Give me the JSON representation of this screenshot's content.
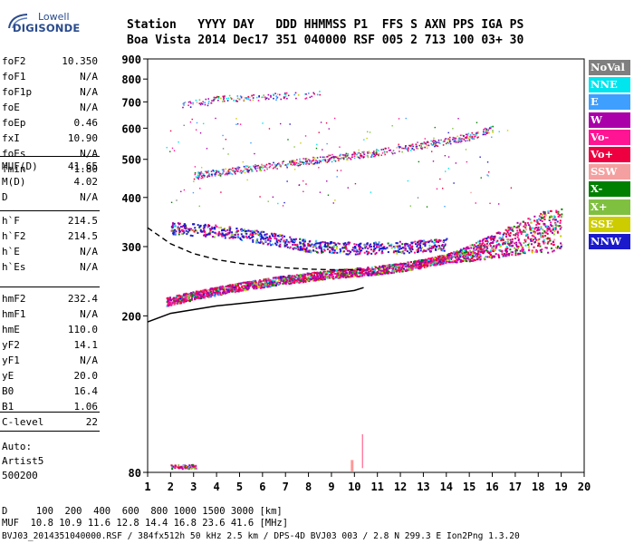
{
  "logo": {
    "brand_line1": "Lowell",
    "brand_line2": "DIGISONDE"
  },
  "header": {
    "row1": "Station   YYYY DAY   DDD HHMMSS P1  FFS S AXN PPS IGA PS",
    "row2": "Boa Vista 2014 Dec17 351 040000 RSF 005 2 713 100 03+ 30"
  },
  "params": {
    "group1": [
      {
        "label": "foF2",
        "value": "10.350"
      },
      {
        "label": "foF1",
        "value": "N/A"
      },
      {
        "label": "foF1p",
        "value": "N/A"
      },
      {
        "label": "foE",
        "value": "N/A"
      },
      {
        "label": "foEp",
        "value": "0.46"
      },
      {
        "label": "fxI",
        "value": "10.90"
      },
      {
        "label": "foEs",
        "value": "N/A"
      },
      {
        "label": "fmin",
        "value": "1.80"
      }
    ],
    "group2": [
      {
        "label": "MUF(D)",
        "value": "41.65"
      },
      {
        "label": "M(D)",
        "value": "4.02"
      },
      {
        "label": "D",
        "value": "N/A"
      }
    ],
    "group3": [
      {
        "label": "h`F",
        "value": "214.5"
      },
      {
        "label": "h`F2",
        "value": "214.5"
      },
      {
        "label": "h`E",
        "value": "N/A"
      },
      {
        "label": "h`Es",
        "value": "N/A"
      }
    ],
    "group4": [
      {
        "label": "hmF2",
        "value": "232.4"
      },
      {
        "label": "hmF1",
        "value": "N/A"
      },
      {
        "label": "hmE",
        "value": "110.0"
      },
      {
        "label": "yF2",
        "value": "14.1"
      },
      {
        "label": "yF1",
        "value": "N/A"
      },
      {
        "label": "yE",
        "value": "20.0"
      },
      {
        "label": "B0",
        "value": "16.4"
      },
      {
        "label": "B1",
        "value": "1.06"
      }
    ],
    "group5": [
      {
        "label": "C-level",
        "value": "22"
      }
    ],
    "autoscale": [
      "Auto:",
      "Artist5",
      "500200"
    ]
  },
  "legend": [
    {
      "label": "NoVal",
      "color": "#7f7f7f"
    },
    {
      "label": "NNE",
      "color": "#00e5ee"
    },
    {
      "label": "E",
      "color": "#3f9fff"
    },
    {
      "label": "W",
      "color": "#aa00aa"
    },
    {
      "label": "Vo-",
      "color": "#ff1493"
    },
    {
      "label": "Vo+",
      "color": "#ee0040"
    },
    {
      "label": "SSW",
      "color": "#f5a0a0"
    },
    {
      "label": "X-",
      "color": "#008000"
    },
    {
      "label": "X+",
      "color": "#80c040"
    },
    {
      "label": "SSE",
      "color": "#cccc00"
    },
    {
      "label": "NNW",
      "color": "#1a1acc"
    }
  ],
  "footer": {
    "line1": "D     100  200  400  600  800 1000 1500 3000 [km]",
    "line2": "MUF  10.8 10.9 11.6 12.8 14.4 16.8 23.6 41.6 [MHz]",
    "line3": "BVJ03_2014351040000.RSF / 384fx512h 50 kHz 2.5 km / DPS-4D BVJ03 003 / 2.8 N 299.3 E Ion2Png 1.3.20"
  },
  "chart_data": {
    "type": "scatter",
    "title": "",
    "xlabel": "",
    "ylabel": "",
    "xlim": [
      1,
      20
    ],
    "ylim": [
      80,
      900
    ],
    "x_ticks": [
      "1",
      "2",
      "3",
      "4",
      "5",
      "6",
      "7",
      "8",
      "9",
      "10",
      "11",
      "12",
      "13",
      "14",
      "15",
      "16",
      "17",
      "18",
      "19",
      "20"
    ],
    "y_ticks": [
      "80",
      "200",
      "300",
      "400",
      "500",
      "600",
      "700",
      "800",
      "900"
    ],
    "y_scale": "log",
    "grid": false,
    "legend_position": "right",
    "traces": [
      {
        "name": "F2 trace (first hop)",
        "values": [
          [
            1.8,
            218
          ],
          [
            3,
            226
          ],
          [
            4,
            232
          ],
          [
            5,
            238
          ],
          [
            6,
            243
          ],
          [
            7,
            248
          ],
          [
            8,
            252
          ],
          [
            9,
            256
          ],
          [
            10,
            259
          ],
          [
            11,
            262
          ],
          [
            12,
            267
          ],
          [
            13,
            273
          ],
          [
            14,
            281
          ],
          [
            15,
            290
          ],
          [
            16,
            302
          ],
          [
            17,
            316
          ],
          [
            18,
            330
          ],
          [
            19,
            335
          ]
        ]
      },
      {
        "name": "F2 trace (second hop)",
        "values": [
          [
            3,
            455
          ],
          [
            5,
            472
          ],
          [
            7,
            488
          ],
          [
            9,
            505
          ],
          [
            11,
            522
          ],
          [
            13,
            545
          ],
          [
            15,
            572
          ],
          [
            16,
            600
          ]
        ]
      },
      {
        "name": "F2 trace (third hop)",
        "values": [
          [
            2.5,
            690
          ],
          [
            3.5,
            700
          ],
          [
            4.2,
            715
          ],
          [
            7.8,
            730
          ],
          [
            8.5,
            738
          ]
        ]
      },
      {
        "name": "Spread F band",
        "values": [
          [
            2,
            335
          ],
          [
            4,
            330
          ],
          [
            6,
            318
          ],
          [
            8,
            302
          ],
          [
            10,
            298
          ],
          [
            12,
            300
          ],
          [
            14,
            305
          ]
        ]
      }
    ],
    "fitted_profile": {
      "name": "true-height profile (solid)",
      "values": [
        [
          1,
          193
        ],
        [
          2,
          203
        ],
        [
          4,
          212
        ],
        [
          6,
          218
        ],
        [
          8,
          224
        ],
        [
          9,
          228
        ],
        [
          10,
          232
        ],
        [
          10.4,
          236
        ]
      ]
    },
    "extrapolated_profile": {
      "name": "topside extrapolation (dashed)",
      "values": [
        [
          1,
          335
        ],
        [
          2,
          305
        ],
        [
          3,
          288
        ],
        [
          4,
          278
        ],
        [
          5,
          272
        ],
        [
          6,
          268
        ],
        [
          7,
          265
        ],
        [
          8,
          263
        ],
        [
          9,
          262
        ],
        [
          10,
          262
        ],
        [
          10.3,
          262
        ]
      ]
    }
  }
}
